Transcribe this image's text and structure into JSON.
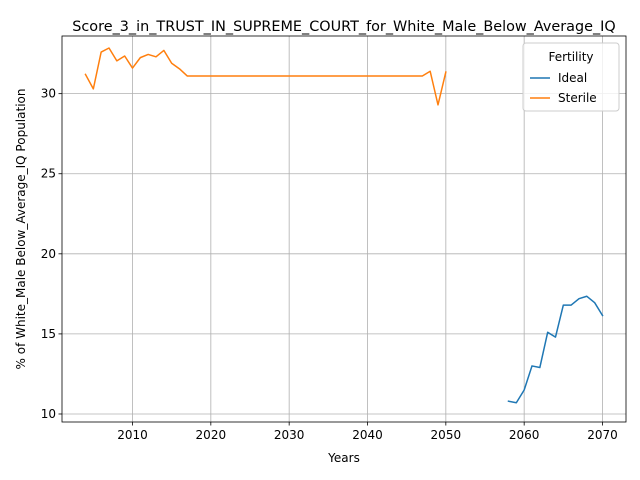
{
  "chart_data": {
    "type": "line",
    "title": "Score_3_in_TRUST_IN_SUPREME_COURT_for_White_Male_Below_Average_IQ",
    "xlabel": "Years",
    "ylabel": "% of White_Male Below_Average_IQ Population",
    "xlim": [
      2001,
      2073
    ],
    "ylim": [
      9.5,
      33.6
    ],
    "xticks": [
      2010,
      2020,
      2030,
      2040,
      2050,
      2060,
      2070
    ],
    "yticks": [
      10,
      15,
      20,
      25,
      30
    ],
    "grid": true,
    "legend": {
      "title": "Fertility",
      "placement": "top-right"
    },
    "series": [
      {
        "name": "Ideal",
        "color": "#1f77b4",
        "x": [
          2058,
          2059,
          2060,
          2061,
          2062,
          2063,
          2064,
          2065,
          2066,
          2067,
          2068,
          2069,
          2070
        ],
        "values": [
          10.8,
          10.7,
          11.5,
          13.0,
          12.9,
          15.1,
          14.8,
          16.8,
          16.8,
          17.2,
          17.35,
          16.95,
          16.15
        ]
      },
      {
        "name": "Sterile",
        "color": "#ff7f0e",
        "x": [
          2004,
          2005,
          2006,
          2007,
          2008,
          2009,
          2010,
          2011,
          2012,
          2013,
          2014,
          2015,
          2016,
          2017,
          2018,
          2019,
          2020,
          2021,
          2022,
          2023,
          2024,
          2025,
          2026,
          2027,
          2028,
          2029,
          2030,
          2031,
          2032,
          2033,
          2034,
          2035,
          2036,
          2037,
          2038,
          2039,
          2040,
          2041,
          2042,
          2043,
          2044,
          2045,
          2046,
          2047,
          2048,
          2049,
          2050
        ],
        "values": [
          31.2,
          30.3,
          32.6,
          32.85,
          32.05,
          32.35,
          31.6,
          32.25,
          32.45,
          32.3,
          32.7,
          31.9,
          31.55,
          31.1,
          31.1,
          31.1,
          31.1,
          31.1,
          31.1,
          31.1,
          31.1,
          31.1,
          31.1,
          31.1,
          31.1,
          31.1,
          31.1,
          31.1,
          31.1,
          31.1,
          31.1,
          31.1,
          31.1,
          31.1,
          31.1,
          31.1,
          31.1,
          31.1,
          31.1,
          31.1,
          31.1,
          31.1,
          31.1,
          31.1,
          31.4,
          29.3,
          31.35
        ]
      }
    ]
  }
}
